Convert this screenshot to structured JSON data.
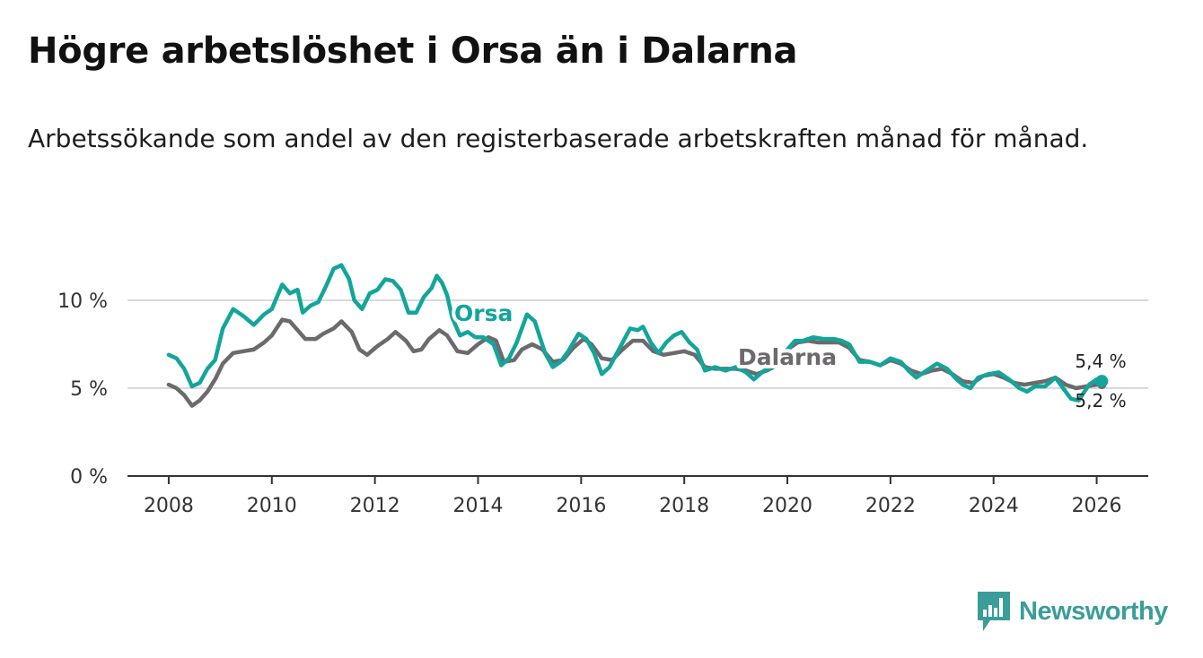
{
  "header": {
    "title": "Högre arbetslöshet i Orsa än i Dalarna",
    "subtitle": "Arbetssökande som andel av den registerbaserade arbetskraften månad för månad."
  },
  "brand": {
    "name": "Newsworthy",
    "color": "#3a9d9a"
  },
  "colors": {
    "orsa": "#13a59c",
    "dalarna": "#6c6a6c",
    "grid": "#d9d9d9",
    "axis": "#333333"
  },
  "chart_data": {
    "type": "line",
    "title": "Högre arbetslöshet i Orsa än i Dalarna",
    "xlabel": "",
    "ylabel": "",
    "xlim": [
      2007.2,
      2027.0
    ],
    "ylim": [
      0,
      12.5
    ],
    "grid": true,
    "x_ticks": [
      {
        "value": 2008,
        "label": "2008"
      },
      {
        "value": 2010,
        "label": "2010"
      },
      {
        "value": 2012,
        "label": "2012"
      },
      {
        "value": 2014,
        "label": "2014"
      },
      {
        "value": 2016,
        "label": "2016"
      },
      {
        "value": 2018,
        "label": "2018"
      },
      {
        "value": 2020,
        "label": "2020"
      },
      {
        "value": 2022,
        "label": "2022"
      },
      {
        "value": 2024,
        "label": "2024"
      },
      {
        "value": 2026,
        "label": "2026"
      }
    ],
    "y_ticks": [
      {
        "value": 0,
        "label": "0 %"
      },
      {
        "value": 5,
        "label": "5 %"
      },
      {
        "value": 10,
        "label": "10 %"
      }
    ],
    "series": [
      {
        "name": "Orsa",
        "end_label": "5,4 %",
        "points": [
          [
            2008.0,
            6.9
          ],
          [
            2008.15,
            6.7
          ],
          [
            2008.3,
            6.1
          ],
          [
            2008.45,
            5.1
          ],
          [
            2008.6,
            5.3
          ],
          [
            2008.75,
            6.1
          ],
          [
            2008.9,
            6.6
          ],
          [
            2009.05,
            8.4
          ],
          [
            2009.25,
            9.5
          ],
          [
            2009.45,
            9.1
          ],
          [
            2009.65,
            8.6
          ],
          [
            2009.85,
            9.2
          ],
          [
            2010.0,
            9.5
          ],
          [
            2010.2,
            10.9
          ],
          [
            2010.35,
            10.4
          ],
          [
            2010.5,
            10.6
          ],
          [
            2010.6,
            9.3
          ],
          [
            2010.75,
            9.7
          ],
          [
            2010.9,
            9.9
          ],
          [
            2011.05,
            10.8
          ],
          [
            2011.2,
            11.8
          ],
          [
            2011.35,
            12.0
          ],
          [
            2011.5,
            11.2
          ],
          [
            2011.6,
            10.0
          ],
          [
            2011.75,
            9.5
          ],
          [
            2011.9,
            10.4
          ],
          [
            2012.05,
            10.6
          ],
          [
            2012.2,
            11.2
          ],
          [
            2012.35,
            11.1
          ],
          [
            2012.5,
            10.6
          ],
          [
            2012.65,
            9.3
          ],
          [
            2012.8,
            9.3
          ],
          [
            2012.95,
            10.2
          ],
          [
            2013.1,
            10.7
          ],
          [
            2013.2,
            11.4
          ],
          [
            2013.3,
            11.0
          ],
          [
            2013.4,
            10.3
          ],
          [
            2013.5,
            9.0
          ],
          [
            2013.65,
            8.0
          ],
          [
            2013.8,
            8.2
          ],
          [
            2013.95,
            7.9
          ],
          [
            2014.1,
            7.9
          ],
          [
            2014.3,
            7.5
          ],
          [
            2014.45,
            6.3
          ],
          [
            2014.6,
            6.7
          ],
          [
            2014.75,
            7.6
          ],
          [
            2014.95,
            9.2
          ],
          [
            2015.1,
            8.8
          ],
          [
            2015.3,
            7.0
          ],
          [
            2015.45,
            6.2
          ],
          [
            2015.6,
            6.5
          ],
          [
            2015.75,
            7.1
          ],
          [
            2015.95,
            8.1
          ],
          [
            2016.1,
            7.8
          ],
          [
            2016.25,
            7.0
          ],
          [
            2016.4,
            5.8
          ],
          [
            2016.55,
            6.2
          ],
          [
            2016.75,
            7.3
          ],
          [
            2016.95,
            8.4
          ],
          [
            2017.1,
            8.3
          ],
          [
            2017.2,
            8.5
          ],
          [
            2017.35,
            7.6
          ],
          [
            2017.5,
            7.0
          ],
          [
            2017.65,
            7.6
          ],
          [
            2017.8,
            8.0
          ],
          [
            2017.95,
            8.2
          ],
          [
            2018.1,
            7.6
          ],
          [
            2018.25,
            7.2
          ],
          [
            2018.4,
            6.0
          ],
          [
            2018.6,
            6.2
          ],
          [
            2018.8,
            6.0
          ],
          [
            2019.0,
            6.2
          ],
          [
            2019.2,
            5.9
          ],
          [
            2019.35,
            5.5
          ],
          [
            2019.55,
            6.0
          ],
          [
            2019.8,
            6.3
          ],
          [
            2020.0,
            7.2
          ],
          [
            2020.15,
            7.7
          ],
          [
            2020.3,
            7.7
          ],
          [
            2020.5,
            7.9
          ],
          [
            2020.7,
            7.8
          ],
          [
            2020.9,
            7.8
          ],
          [
            2021.05,
            7.7
          ],
          [
            2021.2,
            7.5
          ],
          [
            2021.4,
            6.5
          ],
          [
            2021.6,
            6.5
          ],
          [
            2021.8,
            6.3
          ],
          [
            2022.0,
            6.7
          ],
          [
            2022.2,
            6.5
          ],
          [
            2022.35,
            6.0
          ],
          [
            2022.5,
            5.6
          ],
          [
            2022.7,
            6.0
          ],
          [
            2022.9,
            6.4
          ],
          [
            2023.1,
            6.1
          ],
          [
            2023.25,
            5.6
          ],
          [
            2023.4,
            5.2
          ],
          [
            2023.55,
            5.0
          ],
          [
            2023.7,
            5.6
          ],
          [
            2023.9,
            5.8
          ],
          [
            2024.1,
            5.9
          ],
          [
            2024.3,
            5.5
          ],
          [
            2024.5,
            5.0
          ],
          [
            2024.65,
            4.8
          ],
          [
            2024.8,
            5.1
          ],
          [
            2025.0,
            5.1
          ],
          [
            2025.2,
            5.6
          ],
          [
            2025.35,
            5.0
          ],
          [
            2025.5,
            4.4
          ],
          [
            2025.65,
            4.3
          ],
          [
            2025.85,
            5.2
          ],
          [
            2026.0,
            5.5
          ],
          [
            2026.1,
            5.4
          ]
        ]
      },
      {
        "name": "Dalarna",
        "end_label": "5,2 %",
        "points": [
          [
            2008.0,
            5.2
          ],
          [
            2008.15,
            5.0
          ],
          [
            2008.3,
            4.6
          ],
          [
            2008.45,
            4.0
          ],
          [
            2008.6,
            4.3
          ],
          [
            2008.75,
            4.8
          ],
          [
            2008.9,
            5.5
          ],
          [
            2009.05,
            6.4
          ],
          [
            2009.25,
            7.0
          ],
          [
            2009.45,
            7.1
          ],
          [
            2009.65,
            7.2
          ],
          [
            2009.85,
            7.6
          ],
          [
            2010.0,
            8.0
          ],
          [
            2010.2,
            8.9
          ],
          [
            2010.35,
            8.8
          ],
          [
            2010.5,
            8.3
          ],
          [
            2010.65,
            7.8
          ],
          [
            2010.85,
            7.8
          ],
          [
            2011.0,
            8.1
          ],
          [
            2011.2,
            8.4
          ],
          [
            2011.35,
            8.8
          ],
          [
            2011.55,
            8.2
          ],
          [
            2011.7,
            7.2
          ],
          [
            2011.85,
            6.9
          ],
          [
            2012.05,
            7.4
          ],
          [
            2012.25,
            7.8
          ],
          [
            2012.4,
            8.2
          ],
          [
            2012.6,
            7.7
          ],
          [
            2012.75,
            7.1
          ],
          [
            2012.9,
            7.2
          ],
          [
            2013.05,
            7.8
          ],
          [
            2013.25,
            8.3
          ],
          [
            2013.4,
            8.0
          ],
          [
            2013.6,
            7.1
          ],
          [
            2013.8,
            7.0
          ],
          [
            2014.0,
            7.5
          ],
          [
            2014.2,
            7.9
          ],
          [
            2014.35,
            7.7
          ],
          [
            2014.5,
            6.5
          ],
          [
            2014.7,
            6.6
          ],
          [
            2014.85,
            7.2
          ],
          [
            2015.05,
            7.5
          ],
          [
            2015.25,
            7.2
          ],
          [
            2015.45,
            6.5
          ],
          [
            2015.65,
            6.6
          ],
          [
            2015.85,
            7.3
          ],
          [
            2016.05,
            7.8
          ],
          [
            2016.2,
            7.5
          ],
          [
            2016.4,
            6.7
          ],
          [
            2016.6,
            6.6
          ],
          [
            2016.8,
            7.2
          ],
          [
            2017.0,
            7.7
          ],
          [
            2017.2,
            7.7
          ],
          [
            2017.4,
            7.1
          ],
          [
            2017.6,
            6.9
          ],
          [
            2017.8,
            7.0
          ],
          [
            2018.0,
            7.1
          ],
          [
            2018.2,
            6.9
          ],
          [
            2018.4,
            6.2
          ],
          [
            2018.6,
            6.1
          ],
          [
            2018.8,
            6.1
          ],
          [
            2019.0,
            6.1
          ],
          [
            2019.2,
            6.0
          ],
          [
            2019.4,
            5.8
          ],
          [
            2019.6,
            6.0
          ],
          [
            2019.8,
            6.3
          ],
          [
            2020.0,
            7.2
          ],
          [
            2020.2,
            7.6
          ],
          [
            2020.4,
            7.7
          ],
          [
            2020.6,
            7.6
          ],
          [
            2020.8,
            7.6
          ],
          [
            2021.0,
            7.6
          ],
          [
            2021.2,
            7.3
          ],
          [
            2021.4,
            6.6
          ],
          [
            2021.6,
            6.5
          ],
          [
            2021.8,
            6.3
          ],
          [
            2022.0,
            6.6
          ],
          [
            2022.2,
            6.4
          ],
          [
            2022.4,
            6.0
          ],
          [
            2022.6,
            5.8
          ],
          [
            2022.8,
            6.0
          ],
          [
            2023.0,
            6.1
          ],
          [
            2023.2,
            5.8
          ],
          [
            2023.4,
            5.4
          ],
          [
            2023.6,
            5.3
          ],
          [
            2023.8,
            5.7
          ],
          [
            2024.0,
            5.8
          ],
          [
            2024.2,
            5.6
          ],
          [
            2024.4,
            5.3
          ],
          [
            2024.6,
            5.2
          ],
          [
            2024.8,
            5.3
          ],
          [
            2025.0,
            5.4
          ],
          [
            2025.2,
            5.6
          ],
          [
            2025.4,
            5.2
          ],
          [
            2025.6,
            5.0
          ],
          [
            2025.8,
            5.1
          ],
          [
            2026.0,
            5.2
          ],
          [
            2026.1,
            5.2
          ]
        ]
      }
    ],
    "annotations": [
      {
        "text": "Orsa",
        "series": "Orsa"
      },
      {
        "text": "Dalarna",
        "series": "Dalarna"
      }
    ]
  }
}
